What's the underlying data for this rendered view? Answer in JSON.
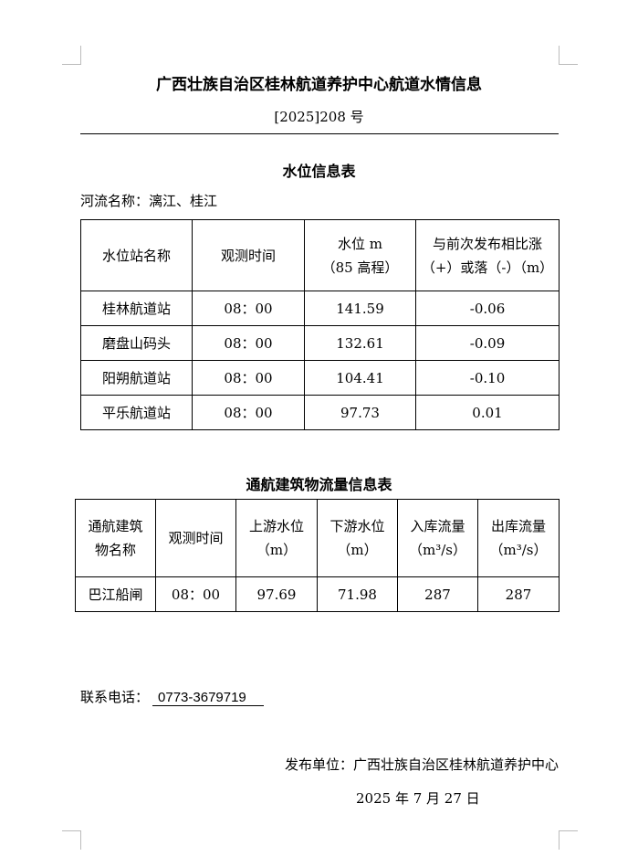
{
  "header": {
    "title": "广西壮族自治区桂林航道养护中心航道水情信息",
    "doc_number": "[2025]208 号"
  },
  "water_level": {
    "title": "水位信息表",
    "river": "河流名称：漓江、桂江",
    "columns": [
      "水位站名称",
      "观测时间",
      "水位 m\n（85 高程）",
      "与前次发布相比涨\n（+）或落（-）（m）"
    ],
    "rows": [
      [
        "桂林航道站",
        "08：00",
        "141.59",
        "-0.06"
      ],
      [
        "磨盘山码头",
        "08：00",
        "132.61",
        "-0.09"
      ],
      [
        "阳朔航道站",
        "08：00",
        "104.41",
        "-0.10"
      ],
      [
        "平乐航道站",
        "08：00",
        "97.73",
        "0.01"
      ]
    ]
  },
  "flow": {
    "title": "通航建筑物流量信息表",
    "columns": [
      "通航建筑\n物名称",
      "观测时间",
      "上游水位\n（m）",
      "下游水位\n（m）",
      "入库流量\n（m³/s）",
      "出库流量\n（m³/s）"
    ],
    "rows": [
      [
        "巴江船闸",
        "08：00",
        "97.69",
        "71.98",
        "287",
        "287"
      ]
    ]
  },
  "footer": {
    "contact_label": "联系电话：",
    "phone": "0773-3679719",
    "publisher": "发布单位：广西壮族自治区桂林航道养护中心",
    "date": "2025 年 7 月 27 日"
  }
}
